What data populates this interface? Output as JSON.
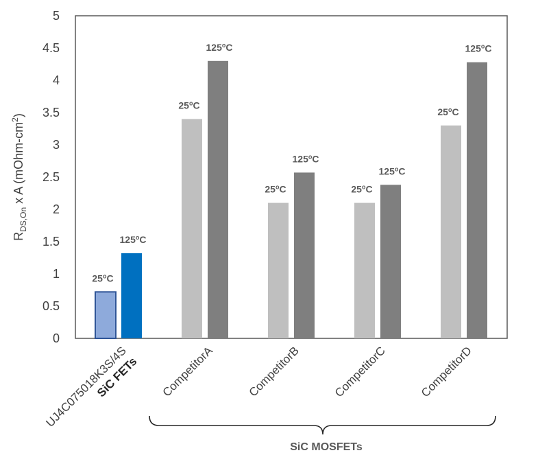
{
  "chart_data": {
    "type": "bar",
    "categories": [
      {
        "name": "UJ4C075018K3S/4S",
        "subtitle": "SiC FETs"
      },
      {
        "name": "CompetitorA",
        "subtitle": ""
      },
      {
        "name": "CompetitorB",
        "subtitle": ""
      },
      {
        "name": "CompetitorC",
        "subtitle": ""
      },
      {
        "name": "CompetitorD",
        "subtitle": ""
      }
    ],
    "series": [
      {
        "name": "25ºC",
        "values": [
          0.72,
          3.4,
          2.1,
          2.1,
          3.3
        ]
      },
      {
        "name": "125ºC",
        "values": [
          1.32,
          4.3,
          2.57,
          2.38,
          4.28
        ]
      }
    ],
    "bar_labels": {
      "s0": "25",
      "s1": "125",
      "sup": "o",
      "unit": "C"
    },
    "colors": {
      "highlight": [
        "#8eaadb",
        "#0070c0"
      ],
      "highlight_edge": "#2f5597",
      "competitor": [
        "#bfbfbf",
        "#7f7f7f"
      ]
    },
    "ylabel": {
      "main": "R",
      "sub": "DS,On",
      "rest": " x A (mOhm-cm",
      "sup": "2",
      "close": ")"
    },
    "ylim": [
      0,
      5
    ],
    "yticks": [
      "0",
      "0.5",
      "1",
      "1.5",
      "2",
      "2.5",
      "3",
      "3.5",
      "4",
      "4.5",
      "5"
    ],
    "group_label": "SiC MOSFETs",
    "grid": false,
    "legend": "none"
  }
}
